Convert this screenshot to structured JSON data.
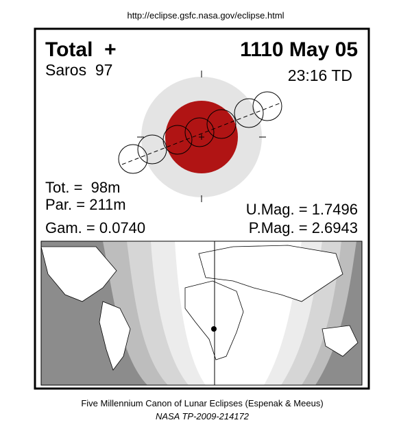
{
  "header": {
    "url": "http://eclipse.gsfc.nasa.gov/eclipse.html"
  },
  "eclipse": {
    "type": "Total  +",
    "date": "1110 May 05",
    "saros": "Saros  97",
    "time": "23:16 TD",
    "tot": "Tot. =  98m",
    "par": "Par. = 211m",
    "gam": "Gam. = 0.0740",
    "umag": "U.Mag. = 1.7496",
    "pmag": "P.Mag. = 2.6943"
  },
  "footer": {
    "line1": "Five Millennium Canon of Lunar Eclipses (Espenak & Meeus)",
    "line2": "NASA TP-2009-214172"
  }
}
